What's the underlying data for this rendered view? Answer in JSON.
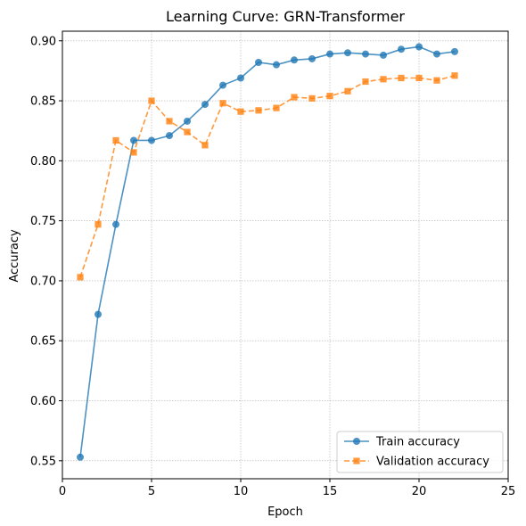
{
  "chart_data": {
    "type": "line",
    "title": "Learning Curve: GRN-Transformer",
    "xlabel": "Epoch",
    "ylabel": "Accuracy",
    "xlim": [
      0,
      25
    ],
    "ylim": [
      0.535,
      0.908
    ],
    "xticks": [
      0,
      5,
      10,
      15,
      20,
      25
    ],
    "yticks": [
      0.55,
      0.6,
      0.65,
      0.7,
      0.75,
      0.8,
      0.85,
      0.9
    ],
    "ytick_labels": [
      "0.55",
      "0.60",
      "0.65",
      "0.70",
      "0.75",
      "0.80",
      "0.85",
      "0.90"
    ],
    "grid": true,
    "legend_position": "lower-right",
    "x": [
      1,
      2,
      3,
      4,
      5,
      6,
      7,
      8,
      9,
      10,
      11,
      12,
      13,
      14,
      15,
      16,
      17,
      18,
      19,
      20,
      21,
      22
    ],
    "series": [
      {
        "name": "Train accuracy",
        "color": "#1f77b4",
        "marker": "circle",
        "linestyle": "solid",
        "values": [
          0.553,
          0.672,
          0.747,
          0.817,
          0.817,
          0.821,
          0.833,
          0.847,
          0.863,
          0.869,
          0.882,
          0.88,
          0.884,
          0.885,
          0.889,
          0.89,
          0.889,
          0.888,
          0.893,
          0.895,
          0.889,
          0.891
        ]
      },
      {
        "name": "Validation accuracy",
        "color": "#ff7f0e",
        "marker": "square",
        "linestyle": "dashed",
        "values": [
          0.703,
          0.747,
          0.817,
          0.807,
          0.85,
          0.833,
          0.824,
          0.813,
          0.848,
          0.841,
          0.842,
          0.844,
          0.853,
          0.852,
          0.854,
          0.858,
          0.866,
          0.868,
          0.869,
          0.869,
          0.867,
          0.871
        ]
      }
    ]
  }
}
